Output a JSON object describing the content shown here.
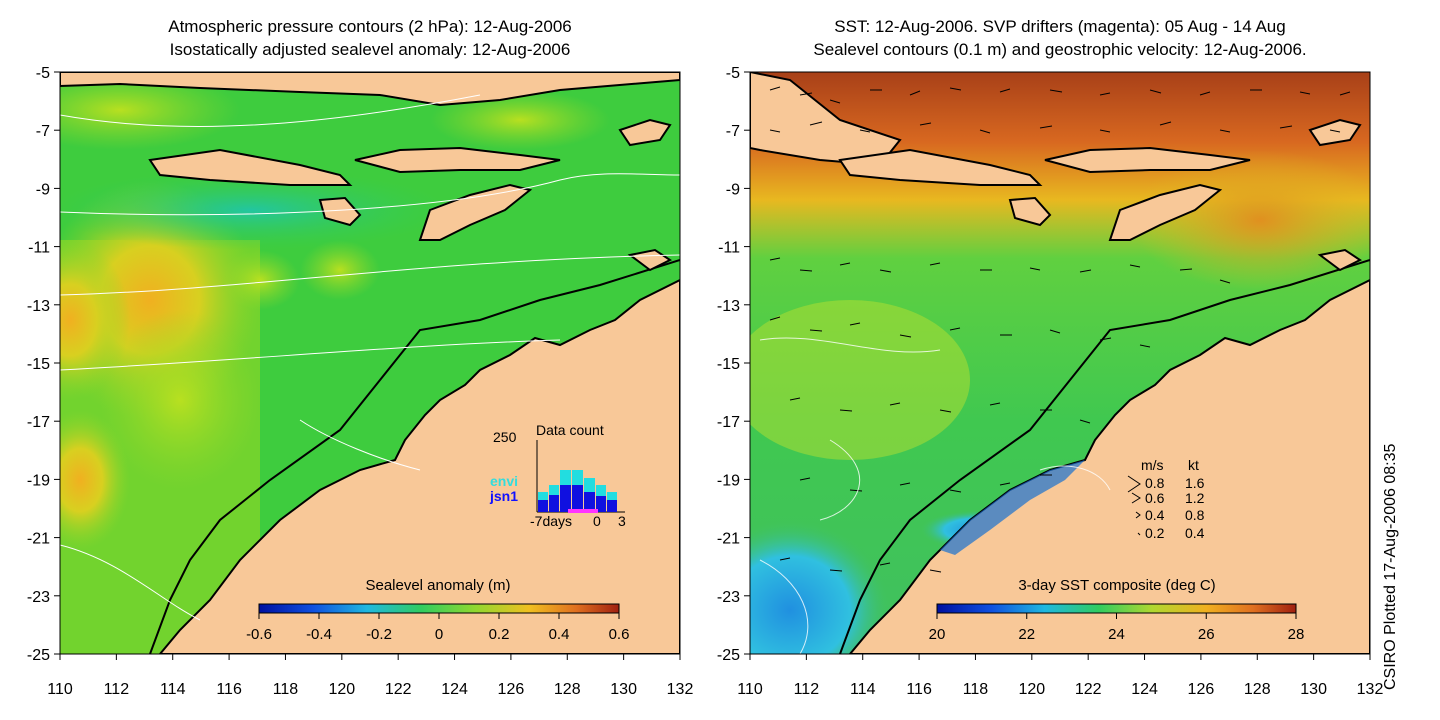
{
  "left_panel": {
    "title_line1": "Atmospheric pressure contours (2 hPa): 12-Aug-2006",
    "title_line2": "Isostatically adjusted sealevel anomaly: 12-Aug-2006",
    "colorbar": {
      "title": "Sealevel anomaly (m)",
      "ticks": [
        "-0.6",
        "-0.4",
        "-0.2",
        "0",
        "0.2",
        "0.4",
        "0.6"
      ]
    },
    "inset": {
      "y_tick": "250",
      "title": "Data count",
      "x_labels": [
        "-7days",
        "0",
        "3"
      ],
      "legend": [
        "envi",
        "jsn1"
      ]
    }
  },
  "right_panel": {
    "title_line1": "SST: 12-Aug-2006. SVP drifters (magenta): 05 Aug - 14 Aug",
    "title_line2": "Sealevel contours (0.1 m) and geostrophic velocity: 12-Aug-2006.",
    "colorbar": {
      "title": "3-day SST composite (deg C)",
      "ticks": [
        "20",
        "22",
        "24",
        "26",
        "28"
      ]
    },
    "velocity_legend": {
      "header_ms": "m/s",
      "header_kt": "kt",
      "rows": [
        {
          "ms": "0.8",
          "kt": "1.6"
        },
        {
          "ms": "0.6",
          "kt": "1.2"
        },
        {
          "ms": "0.4",
          "kt": "0.8"
        },
        {
          "ms": "0.2",
          "kt": "0.4"
        }
      ]
    }
  },
  "axes": {
    "lat_ticks": [
      "-5",
      "-7",
      "-9",
      "-11",
      "-13",
      "-15",
      "-17",
      "-19",
      "-21",
      "-23",
      "-25"
    ],
    "lon_ticks": [
      "110",
      "112",
      "114",
      "116",
      "118",
      "120",
      "122",
      "124",
      "126",
      "128",
      "130",
      "132"
    ]
  },
  "credit": "CSIRO Plotted 17-Aug-2006 08:35",
  "colors": {
    "land": "#f8c898",
    "sea_green": "#33cc33",
    "coast": "#000000",
    "contour": "#ffffff",
    "sst_warm": "#c05010"
  }
}
